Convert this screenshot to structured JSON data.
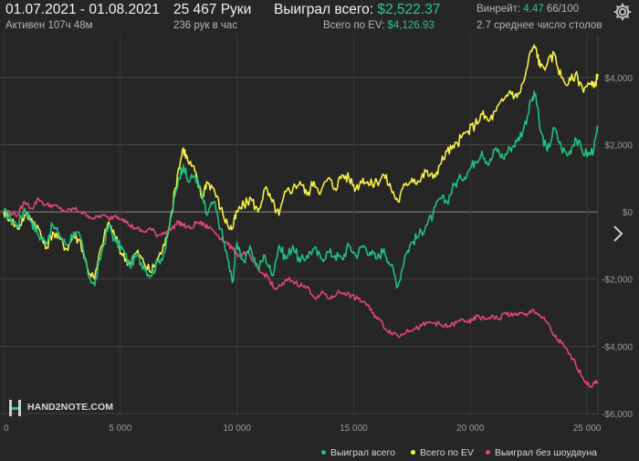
{
  "header": {
    "date_range": "01.07.2021 - 01.08.2021",
    "active_time": "Активен 107ч 48м",
    "hands": "25 467 Руки",
    "hands_per_hour": "236 рук в час",
    "won_total_label": "Выиграл всего:",
    "won_total_value": "$2,522.37",
    "ev_total_label": "Всего по EV:",
    "ev_total_value": "$4,126.93",
    "winrate_label": "Винрейт:",
    "winrate_value": "4.47",
    "winrate_extra": "66/100",
    "avg_tables": "2.7 среднее число столов"
  },
  "icons": {
    "settings": "gear-icon",
    "next": "chevron-right-icon",
    "logo": "hand2note-logo-icon"
  },
  "logo_text": "HAND2NOTE.COM",
  "colors": {
    "background": "#262626",
    "won": "#20c07f",
    "ev": "#f6f04a",
    "no_showdown": "#e0457b",
    "accent_green": "#2fc48d"
  },
  "chart_data": {
    "type": "line",
    "xlim": [
      0,
      25467
    ],
    "ylim": [
      -6000,
      5000
    ],
    "x_ticks": [
      0,
      5000,
      10000,
      15000,
      20000,
      25000
    ],
    "x_tick_labels": [
      "0",
      "5 000",
      "10 000",
      "15 000",
      "20 000",
      "25 000"
    ],
    "y_ticks": [
      4000,
      2000,
      0,
      -2000,
      -4000,
      -6000
    ],
    "y_tick_labels": [
      "$4,000",
      "$2,000",
      "$0",
      "-$2,000",
      "-$4,000",
      "-$6,000"
    ],
    "grid": true,
    "legend_position": "bottom-right",
    "series": [
      {
        "name": "Выиграл всего",
        "color": "#20c07f",
        "points": [
          [
            0,
            0
          ],
          [
            300,
            -200
          ],
          [
            600,
            -400
          ],
          [
            900,
            100
          ],
          [
            1200,
            -300
          ],
          [
            1500,
            -700
          ],
          [
            1800,
            -900
          ],
          [
            2100,
            -400
          ],
          [
            2400,
            -700
          ],
          [
            2700,
            -1000
          ],
          [
            3000,
            -600
          ],
          [
            3300,
            -800
          ],
          [
            3600,
            -1800
          ],
          [
            3900,
            -2200
          ],
          [
            4200,
            -1200
          ],
          [
            4500,
            -400
          ],
          [
            4800,
            -900
          ],
          [
            5100,
            -1100
          ],
          [
            5400,
            -1600
          ],
          [
            5700,
            -1300
          ],
          [
            6000,
            -1600
          ],
          [
            6300,
            -1900
          ],
          [
            6600,
            -1500
          ],
          [
            6900,
            -1200
          ],
          [
            7200,
            -100
          ],
          [
            7500,
            1000
          ],
          [
            7700,
            1400
          ],
          [
            7900,
            900
          ],
          [
            8200,
            1100
          ],
          [
            8500,
            500
          ],
          [
            8700,
            -100
          ],
          [
            9000,
            300
          ],
          [
            9300,
            -500
          ],
          [
            9600,
            -1400
          ],
          [
            9800,
            -2100
          ],
          [
            10000,
            -900
          ],
          [
            10300,
            -1500
          ],
          [
            10600,
            -1100
          ],
          [
            10900,
            -1700
          ],
          [
            11200,
            -1300
          ],
          [
            11500,
            -1900
          ],
          [
            11800,
            -1000
          ],
          [
            12100,
            -1400
          ],
          [
            12400,
            -1000
          ],
          [
            12700,
            -1500
          ],
          [
            13000,
            -1300
          ],
          [
            13300,
            -1100
          ],
          [
            13600,
            -1400
          ],
          [
            13900,
            -1200
          ],
          [
            14200,
            -1300
          ],
          [
            14500,
            -1400
          ],
          [
            14800,
            -1000
          ],
          [
            15100,
            -1300
          ],
          [
            15400,
            -1000
          ],
          [
            15700,
            -1200
          ],
          [
            16000,
            -1400
          ],
          [
            16300,
            -1100
          ],
          [
            16600,
            -1600
          ],
          [
            16900,
            -2200
          ],
          [
            17200,
            -1300
          ],
          [
            17500,
            -900
          ],
          [
            17800,
            -700
          ],
          [
            18100,
            -400
          ],
          [
            18400,
            -100
          ],
          [
            18700,
            400
          ],
          [
            19000,
            300
          ],
          [
            19300,
            800
          ],
          [
            19600,
            1000
          ],
          [
            19900,
            1200
          ],
          [
            20200,
            1500
          ],
          [
            20500,
            1800
          ],
          [
            20800,
            1400
          ],
          [
            21100,
            1900
          ],
          [
            21400,
            1600
          ],
          [
            21700,
            1900
          ],
          [
            22000,
            2100
          ],
          [
            22300,
            2500
          ],
          [
            22600,
            3300
          ],
          [
            22800,
            3500
          ],
          [
            23000,
            2400
          ],
          [
            23300,
            1800
          ],
          [
            23600,
            2500
          ],
          [
            23900,
            1900
          ],
          [
            24200,
            1700
          ],
          [
            24500,
            2200
          ],
          [
            24800,
            1800
          ],
          [
            25100,
            1700
          ],
          [
            25300,
            1900
          ],
          [
            25467,
            2500
          ]
        ]
      },
      {
        "name": "Всего по EV",
        "color": "#f6f04a",
        "points": [
          [
            0,
            0
          ],
          [
            300,
            -200
          ],
          [
            600,
            -500
          ],
          [
            900,
            -100
          ],
          [
            1200,
            -200
          ],
          [
            1500,
            -500
          ],
          [
            1800,
            -1100
          ],
          [
            2100,
            -600
          ],
          [
            2400,
            -800
          ],
          [
            2700,
            -1100
          ],
          [
            3000,
            -700
          ],
          [
            3300,
            -900
          ],
          [
            3600,
            -1700
          ],
          [
            3900,
            -2000
          ],
          [
            4200,
            -1000
          ],
          [
            4500,
            -300
          ],
          [
            4800,
            -800
          ],
          [
            5100,
            -1300
          ],
          [
            5400,
            -1500
          ],
          [
            5700,
            -1200
          ],
          [
            6000,
            -1500
          ],
          [
            6300,
            -1800
          ],
          [
            6600,
            -1400
          ],
          [
            6900,
            -1000
          ],
          [
            7200,
            0
          ],
          [
            7500,
            1300
          ],
          [
            7700,
            1900
          ],
          [
            7900,
            1500
          ],
          [
            8200,
            1200
          ],
          [
            8500,
            400
          ],
          [
            8700,
            900
          ],
          [
            9000,
            700
          ],
          [
            9300,
            100
          ],
          [
            9600,
            -400
          ],
          [
            9800,
            -500
          ],
          [
            10000,
            0
          ],
          [
            10300,
            200
          ],
          [
            10600,
            400
          ],
          [
            10900,
            0
          ],
          [
            11200,
            700
          ],
          [
            11500,
            300
          ],
          [
            11800,
            -100
          ],
          [
            12100,
            600
          ],
          [
            12400,
            700
          ],
          [
            12700,
            900
          ],
          [
            13000,
            500
          ],
          [
            13300,
            900
          ],
          [
            13600,
            600
          ],
          [
            13900,
            1000
          ],
          [
            14200,
            700
          ],
          [
            14500,
            1100
          ],
          [
            14800,
            1000
          ],
          [
            15100,
            700
          ],
          [
            15400,
            1000
          ],
          [
            15700,
            800
          ],
          [
            16000,
            900
          ],
          [
            16300,
            1100
          ],
          [
            16600,
            700
          ],
          [
            16900,
            300
          ],
          [
            17200,
            800
          ],
          [
            17500,
            1000
          ],
          [
            17800,
            900
          ],
          [
            18100,
            1200
          ],
          [
            18400,
            1000
          ],
          [
            18700,
            1400
          ],
          [
            19000,
            1800
          ],
          [
            19300,
            1900
          ],
          [
            19600,
            2200
          ],
          [
            19900,
            2400
          ],
          [
            20200,
            2600
          ],
          [
            20500,
            2900
          ],
          [
            20800,
            2700
          ],
          [
            21100,
            3000
          ],
          [
            21400,
            3300
          ],
          [
            21700,
            3600
          ],
          [
            22000,
            3400
          ],
          [
            22300,
            3900
          ],
          [
            22600,
            4800
          ],
          [
            22800,
            4900
          ],
          [
            23000,
            4300
          ],
          [
            23300,
            4400
          ],
          [
            23600,
            4700
          ],
          [
            23900,
            4000
          ],
          [
            24200,
            3800
          ],
          [
            24500,
            4100
          ],
          [
            24800,
            3700
          ],
          [
            25100,
            3800
          ],
          [
            25300,
            3700
          ],
          [
            25467,
            4100
          ]
        ]
      },
      {
        "name": "Выиграл без шоудауна",
        "color": "#e0457b",
        "points": [
          [
            0,
            0
          ],
          [
            300,
            0
          ],
          [
            600,
            -100
          ],
          [
            900,
            300
          ],
          [
            1200,
            100
          ],
          [
            1500,
            400
          ],
          [
            1800,
            200
          ],
          [
            2100,
            200
          ],
          [
            2400,
            100
          ],
          [
            2700,
            0
          ],
          [
            3000,
            100
          ],
          [
            3300,
            0
          ],
          [
            3600,
            -100
          ],
          [
            3900,
            -200
          ],
          [
            4200,
            -100
          ],
          [
            4500,
            -200
          ],
          [
            4800,
            -100
          ],
          [
            5100,
            -200
          ],
          [
            5400,
            -400
          ],
          [
            5700,
            -500
          ],
          [
            6000,
            -600
          ],
          [
            6300,
            -500
          ],
          [
            6600,
            -700
          ],
          [
            6900,
            -600
          ],
          [
            7200,
            -500
          ],
          [
            7500,
            -300
          ],
          [
            7700,
            -400
          ],
          [
            8000,
            -500
          ],
          [
            8300,
            -300
          ],
          [
            8600,
            -400
          ],
          [
            8900,
            -500
          ],
          [
            9200,
            -700
          ],
          [
            9500,
            -900
          ],
          [
            9800,
            -1100
          ],
          [
            10100,
            -1300
          ],
          [
            10400,
            -1200
          ],
          [
            10700,
            -1500
          ],
          [
            11000,
            -1800
          ],
          [
            11300,
            -1900
          ],
          [
            11600,
            -2300
          ],
          [
            11900,
            -2200
          ],
          [
            12200,
            -2000
          ],
          [
            12500,
            -2100
          ],
          [
            12800,
            -2200
          ],
          [
            13100,
            -2300
          ],
          [
            13400,
            -2600
          ],
          [
            13700,
            -2400
          ],
          [
            14000,
            -2600
          ],
          [
            14300,
            -2400
          ],
          [
            14600,
            -2400
          ],
          [
            14900,
            -2500
          ],
          [
            15200,
            -2600
          ],
          [
            15500,
            -2700
          ],
          [
            15800,
            -3000
          ],
          [
            16100,
            -3200
          ],
          [
            16400,
            -3500
          ],
          [
            16700,
            -3600
          ],
          [
            17000,
            -3700
          ],
          [
            17300,
            -3500
          ],
          [
            17600,
            -3500
          ],
          [
            17900,
            -3400
          ],
          [
            18200,
            -3300
          ],
          [
            18500,
            -3300
          ],
          [
            18800,
            -3400
          ],
          [
            19100,
            -3400
          ],
          [
            19400,
            -3300
          ],
          [
            19700,
            -3200
          ],
          [
            20000,
            -3300
          ],
          [
            20300,
            -3100
          ],
          [
            20600,
            -3200
          ],
          [
            20900,
            -3100
          ],
          [
            21200,
            -3200
          ],
          [
            21500,
            -3000
          ],
          [
            21800,
            -3100
          ],
          [
            22100,
            -3000
          ],
          [
            22400,
            -3100
          ],
          [
            22700,
            -2900
          ],
          [
            23000,
            -3100
          ],
          [
            23300,
            -3300
          ],
          [
            23600,
            -3700
          ],
          [
            23900,
            -3900
          ],
          [
            24200,
            -4200
          ],
          [
            24500,
            -4500
          ],
          [
            24800,
            -4900
          ],
          [
            25100,
            -5200
          ],
          [
            25300,
            -5100
          ],
          [
            25467,
            -5100
          ]
        ]
      }
    ]
  }
}
